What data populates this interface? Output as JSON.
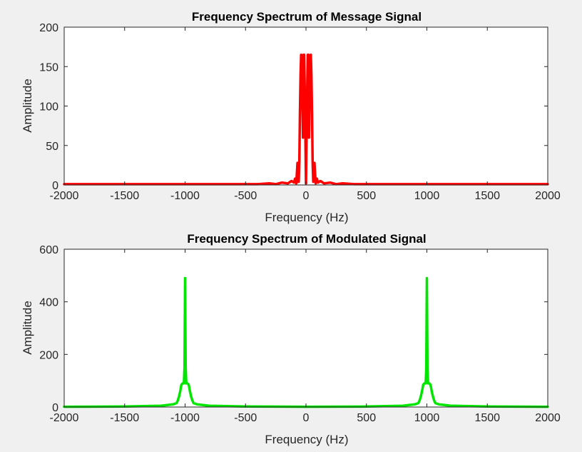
{
  "chart_data": [
    {
      "type": "line",
      "title": "Frequency Spectrum of Message Signal",
      "xlabel": "Frequency (Hz)",
      "ylabel": "Amplitude",
      "xlim": [
        -2000,
        2000
      ],
      "ylim": [
        0,
        200
      ],
      "xticks": [
        -2000,
        -1500,
        -1000,
        -500,
        0,
        500,
        1000,
        1500,
        2000
      ],
      "yticks": [
        0,
        50,
        100,
        150,
        200
      ],
      "grid": false,
      "series": [
        {
          "color": "#ff0000",
          "x": [
            -2000,
            -400,
            -300,
            -250,
            -200,
            -150,
            -120,
            -100,
            -90,
            -80,
            -70,
            -60,
            -55,
            -50,
            -45,
            -40,
            -35,
            -30,
            -25,
            -20,
            -15,
            -10,
            -5,
            0,
            5,
            10,
            15,
            20,
            25,
            30,
            35,
            40,
            45,
            50,
            55,
            60,
            70,
            80,
            90,
            100,
            120,
            150,
            200,
            250,
            300,
            400,
            2000
          ],
          "y": [
            1,
            1,
            2,
            1,
            3,
            2,
            5,
            3,
            8,
            2,
            28,
            4,
            30,
            90,
            140,
            165,
            160,
            110,
            60,
            165,
            165,
            120,
            60,
            2,
            60,
            120,
            165,
            165,
            60,
            110,
            160,
            165,
            140,
            90,
            30,
            4,
            28,
            2,
            8,
            3,
            5,
            2,
            3,
            1,
            2,
            1,
            1
          ]
        }
      ]
    },
    {
      "type": "line",
      "title": "Frequency Spectrum of Modulated Signal",
      "xlabel": "Frequency (Hz)",
      "ylabel": "Amplitude",
      "xlim": [
        -2000,
        2000
      ],
      "ylim": [
        0,
        600
      ],
      "xticks": [
        -2000,
        -1500,
        -1000,
        -500,
        0,
        500,
        1000,
        1500,
        2000
      ],
      "yticks": [
        0,
        200,
        400,
        600
      ],
      "grid": false,
      "series": [
        {
          "color": "#00e600",
          "x": [
            -2000,
            -1500,
            -1200,
            -1100,
            -1070,
            -1060,
            -1050,
            -1040,
            -1030,
            -1020,
            -1010,
            -1005,
            -1000,
            -995,
            -990,
            -980,
            -970,
            -960,
            -950,
            -940,
            -930,
            -900,
            -800,
            -500,
            0,
            500,
            800,
            900,
            930,
            940,
            950,
            960,
            970,
            980,
            990,
            995,
            1000,
            1005,
            1010,
            1020,
            1030,
            1040,
            1050,
            1060,
            1070,
            1100,
            1200,
            1500,
            2000
          ],
          "y": [
            1,
            2,
            5,
            10,
            15,
            25,
            40,
            60,
            85,
            90,
            90,
            150,
            490,
            150,
            90,
            90,
            85,
            60,
            40,
            25,
            15,
            10,
            5,
            2,
            1,
            2,
            5,
            10,
            15,
            25,
            40,
            60,
            85,
            90,
            90,
            150,
            490,
            150,
            90,
            90,
            85,
            60,
            40,
            25,
            15,
            10,
            5,
            2,
            1
          ]
        }
      ]
    }
  ]
}
